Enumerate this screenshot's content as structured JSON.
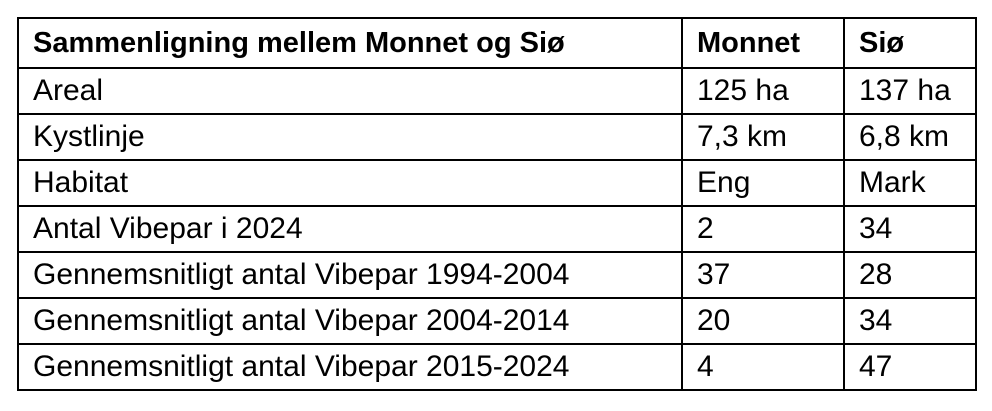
{
  "table": {
    "headers": [
      "Sammenligning mellem Monnet og Siø",
      "Monnet",
      "Siø"
    ],
    "rows": [
      [
        "Areal",
        "125 ha",
        "137 ha"
      ],
      [
        "Kystlinje",
        "7,3 km",
        "6,8 km"
      ],
      [
        "Habitat",
        "Eng",
        "Mark"
      ],
      [
        "Antal Vibepar i 2024",
        "2",
        "34"
      ],
      [
        "Gennemsnitligt antal Vibepar 1994-2004",
        "37",
        "28"
      ],
      [
        "Gennemsnitligt antal Vibepar 2004-2014",
        "20",
        "34"
      ],
      [
        "Gennemsnitligt antal Vibepar 2015-2024",
        "4",
        "47"
      ]
    ]
  }
}
